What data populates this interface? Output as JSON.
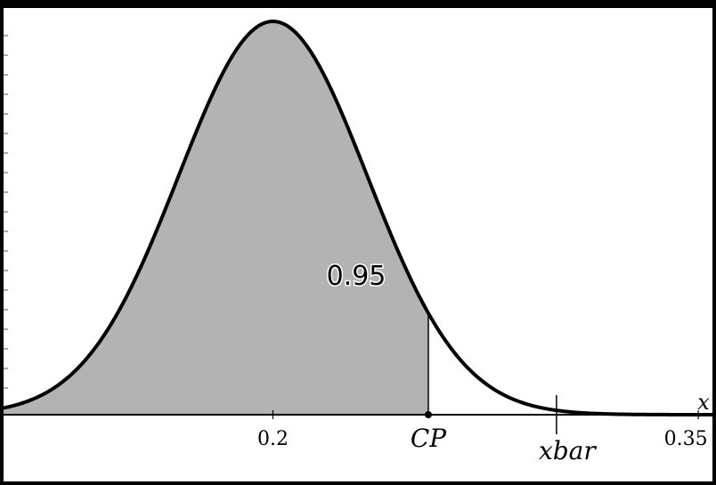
{
  "chart_data": {
    "type": "area",
    "distribution": "normal",
    "mean": 0.2,
    "sd": 0.0333,
    "xlim": [
      0.105,
      0.355
    ],
    "x_axis_label": "x",
    "x_ticks": [
      {
        "value": 0.2,
        "label": "0.2"
      },
      {
        "value": 0.35,
        "label": "0.35"
      }
    ],
    "markers": [
      {
        "name": "CP",
        "value": 0.2548,
        "style": "point-with-vertical-line"
      },
      {
        "name": "xbar",
        "value": 0.3,
        "style": "short-vertical-line"
      }
    ],
    "shaded_region": {
      "from": 0.105,
      "to": 0.2548,
      "area": 0.95,
      "label": "0.95"
    },
    "colors": {
      "background": "#ffffff",
      "shade": "#b3b3b3",
      "curve": "#000000",
      "frame": "#000000"
    }
  }
}
